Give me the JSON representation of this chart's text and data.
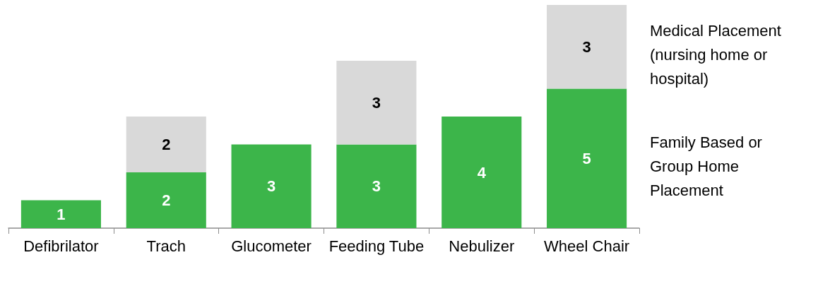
{
  "chart_data": {
    "type": "bar",
    "stacked": true,
    "data_labels": true,
    "legend": "right",
    "categories": [
      "Defibrilator",
      "Trach",
      "Glucometer",
      "Feeding Tube",
      "Nebulizer",
      "Wheel Chair"
    ],
    "series": [
      {
        "name": "Family Based or Group Home Placement",
        "color": "#3cb54a",
        "values": [
          1,
          2,
          3,
          3,
          4,
          5
        ]
      },
      {
        "name": "Medical Placement (nursing home or hospital)",
        "color": "#d9d9d9",
        "values": [
          null,
          2,
          null,
          3,
          null,
          3
        ]
      }
    ]
  }
}
